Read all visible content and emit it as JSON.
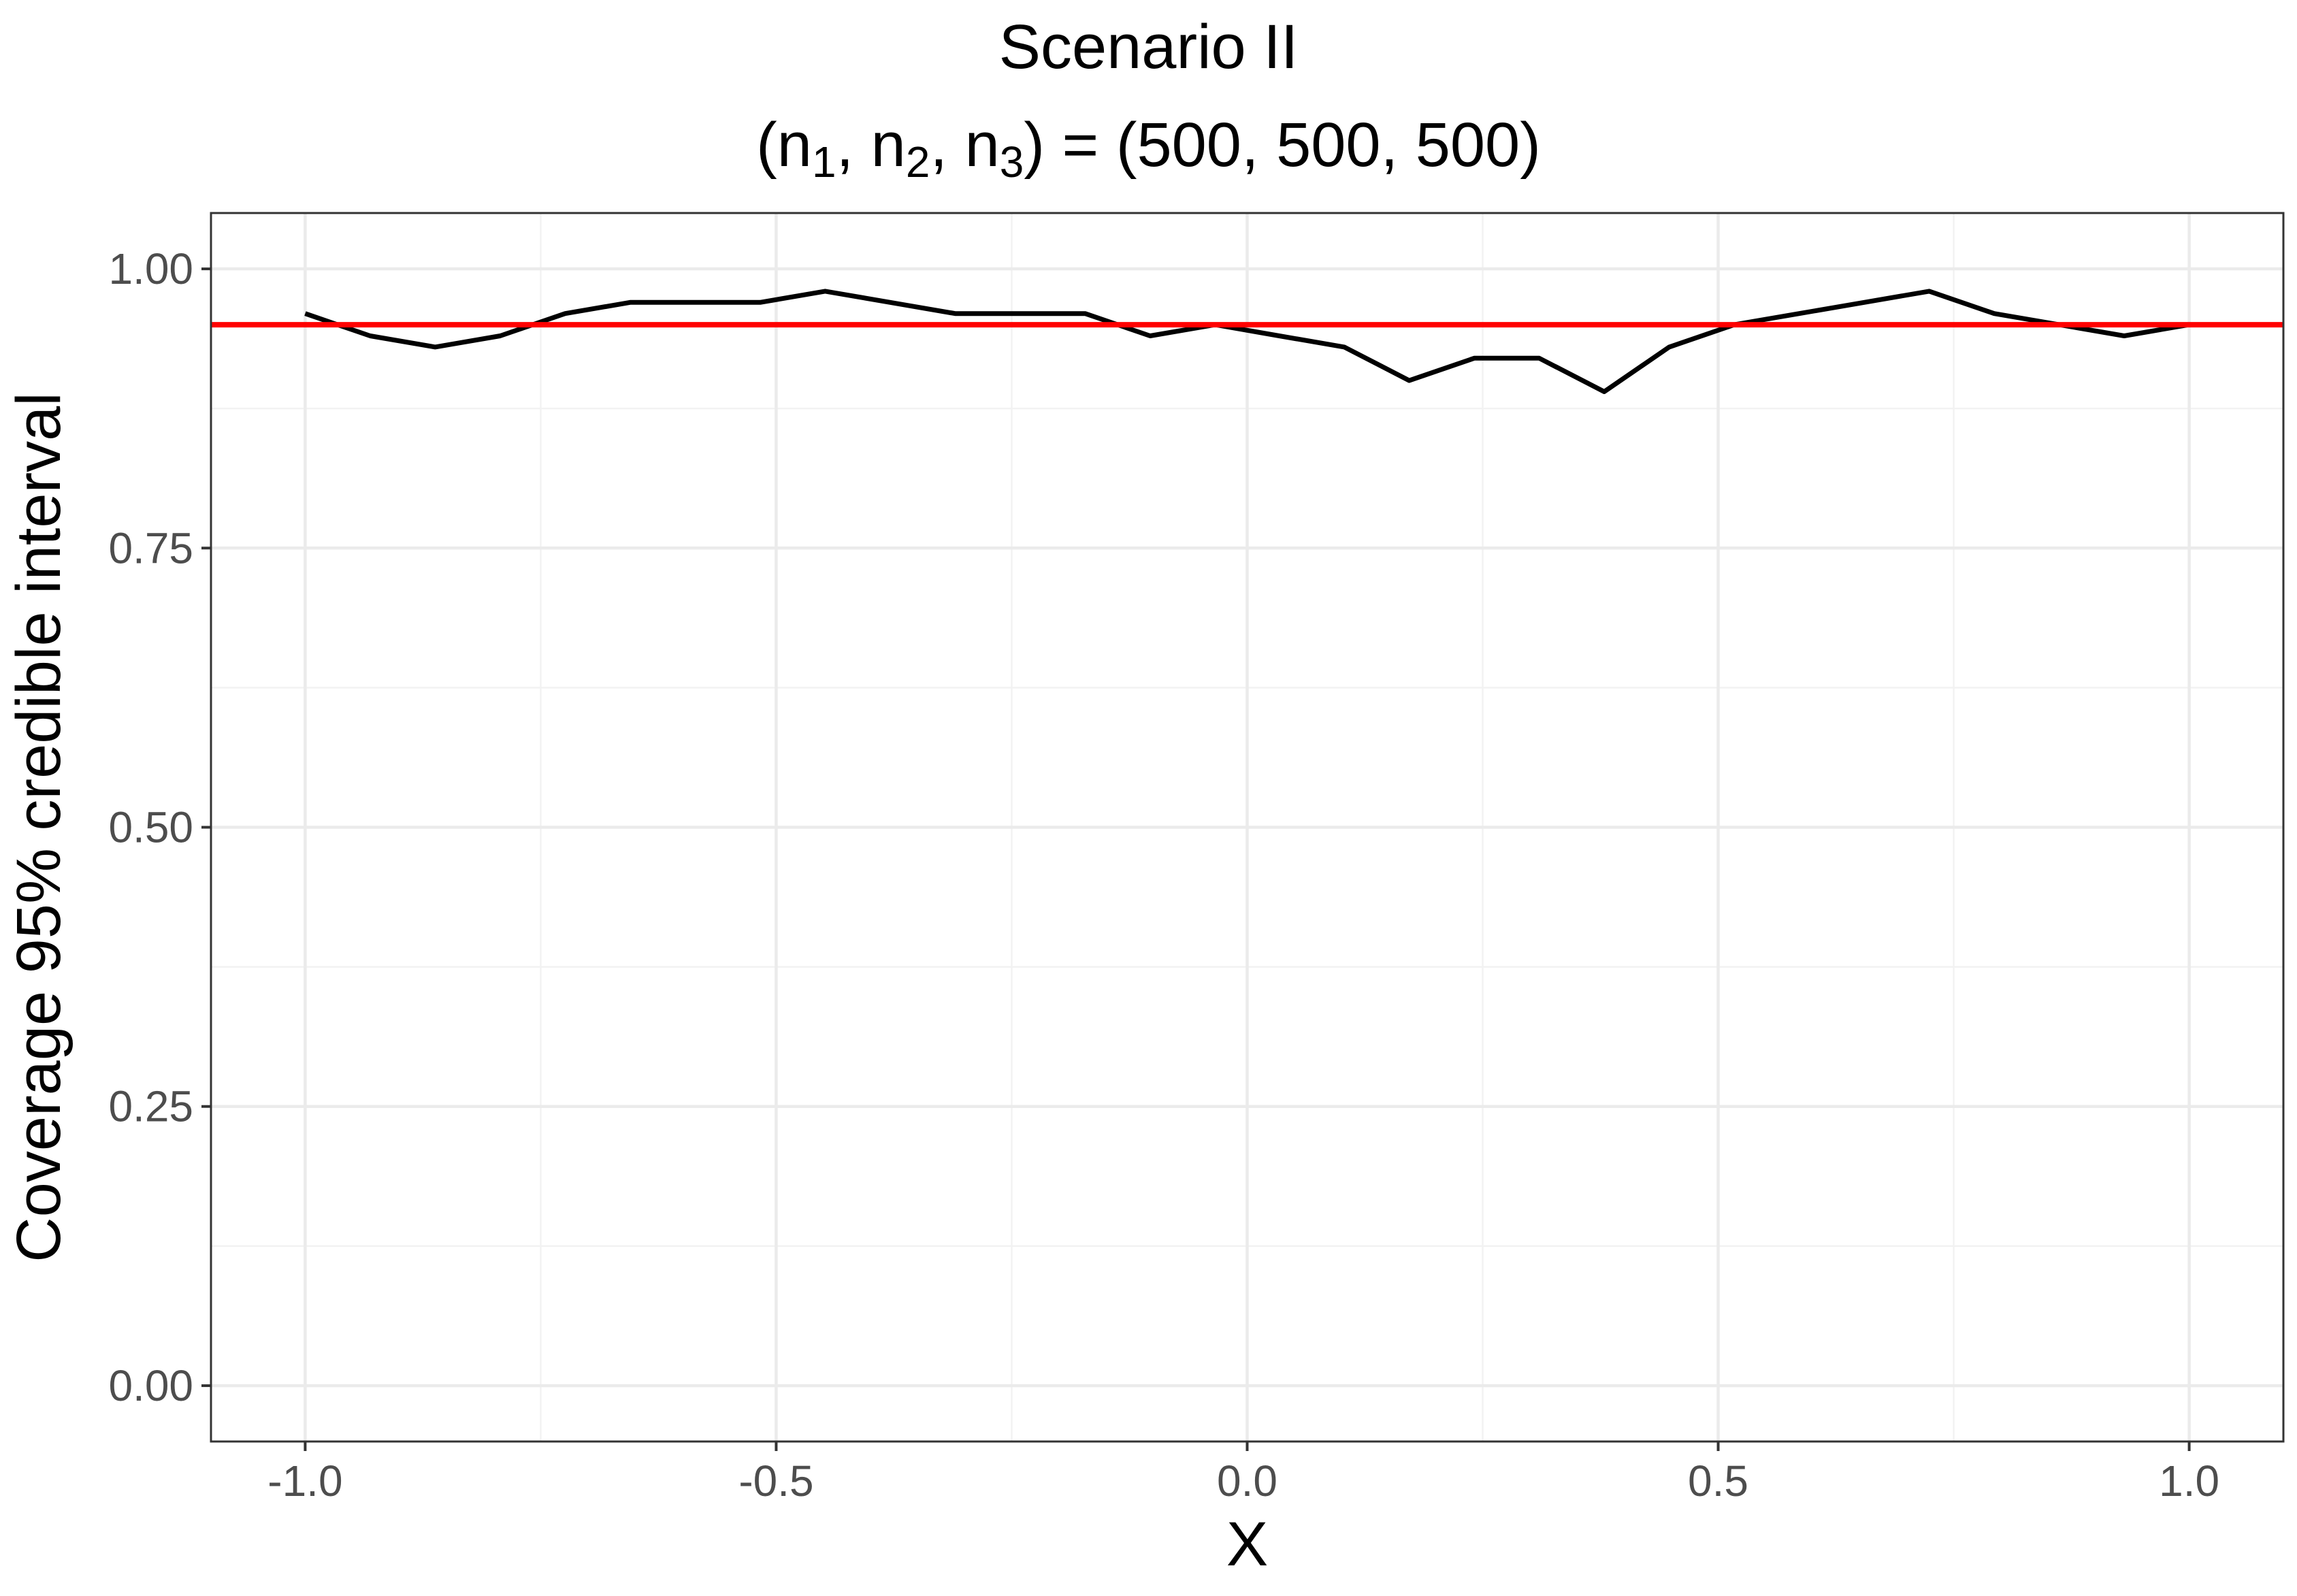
{
  "chart_data": {
    "type": "line",
    "title": "Scenario II",
    "subtitle": {
      "parts": [
        {
          "text": "(n",
          "sub": false
        },
        {
          "text": "1",
          "sub": true
        },
        {
          "text": ", n",
          "sub": false
        },
        {
          "text": "2",
          "sub": true
        },
        {
          "text": ", n",
          "sub": false
        },
        {
          "text": "3",
          "sub": true
        },
        {
          "text": ") = (500, 500, 500)",
          "sub": false
        }
      ]
    },
    "xlabel": "X",
    "ylabel": "Coverage 95% credible interval",
    "xlim": [
      -1.1,
      1.1
    ],
    "ylim": [
      -0.05,
      1.05
    ],
    "x_ticks": [
      -1.0,
      -0.5,
      0.0,
      0.5,
      1.0
    ],
    "x_tick_labels": [
      "-1.0",
      "-0.5",
      "0.0",
      "0.5",
      "1.0"
    ],
    "y_ticks": [
      0.0,
      0.25,
      0.5,
      0.75,
      1.0
    ],
    "y_tick_labels": [
      "0.00",
      "0.25",
      "0.50",
      "0.75",
      "1.00"
    ],
    "grid": true,
    "theme": "bw",
    "series": [
      {
        "color": "#000000",
        "x": [
          -1.0,
          -0.931,
          -0.862,
          -0.793,
          -0.724,
          -0.655,
          -0.586,
          -0.517,
          -0.448,
          -0.379,
          -0.31,
          -0.241,
          -0.172,
          -0.103,
          -0.034,
          0.034,
          0.103,
          0.172,
          0.241,
          0.31,
          0.379,
          0.448,
          0.517,
          0.586,
          0.655,
          0.724,
          0.793,
          0.862,
          0.931,
          1.0
        ],
        "values": [
          0.96,
          0.94,
          0.93,
          0.94,
          0.96,
          0.97,
          0.97,
          0.97,
          0.98,
          0.97,
          0.96,
          0.96,
          0.96,
          0.94,
          0.95,
          0.94,
          0.93,
          0.9,
          0.92,
          0.92,
          0.89,
          0.93,
          0.95,
          0.96,
          0.97,
          0.98,
          0.96,
          0.95,
          0.94,
          0.95
        ]
      }
    ],
    "reference_lines": [
      {
        "orientation": "horizontal",
        "y": 0.95,
        "color": "#ff0000"
      }
    ]
  }
}
